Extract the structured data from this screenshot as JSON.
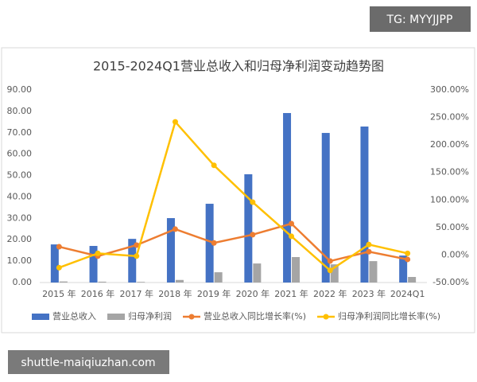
{
  "watermarks": {
    "top": "TG: MYYJJPP",
    "bottom": "shuttle-maiqiuzhan.com"
  },
  "chart_data": {
    "type": "bar",
    "title": "2015-2024Q1营业总收入和归母净利润变动趋势图",
    "categories": [
      "2015 年",
      "2016 年",
      "2017 年",
      "2018 年",
      "2019 年",
      "2020 年",
      "2021 年",
      "2022 年",
      "2023 年",
      "2024Q1"
    ],
    "series": [
      {
        "name": "营业总收入",
        "color": "#4472c4",
        "values": [
          17.8,
          17.1,
          20.4,
          30.1,
          36.8,
          50.6,
          79.2,
          69.9,
          72.9,
          12.6
        ]
      },
      {
        "name": "归母净利润",
        "color": "#a5a5a5",
        "values": [
          0.5,
          0.4,
          0.3,
          1.2,
          4.8,
          8.9,
          11.9,
          8.5,
          10.0,
          2.6
        ]
      },
      {
        "name": "营业总收入同比增长率(%)",
        "color": "#ed7d31",
        "type": "line",
        "axis": "y2",
        "values": [
          15,
          -2,
          18,
          47,
          22,
          37,
          57,
          -11,
          6,
          -8
        ]
      },
      {
        "name": "归母净利润同比增长率(%)",
        "color": "#ffc000",
        "type": "line",
        "axis": "y2",
        "values": [
          -23,
          3,
          -2,
          242,
          163,
          96,
          34,
          -28,
          19,
          3
        ]
      }
    ],
    "ylim": [
      0,
      90
    ],
    "yticks": [
      {
        "value": 0,
        "label": "0.00"
      },
      {
        "value": 10,
        "label": "10.00"
      },
      {
        "value": 20,
        "label": "20.00"
      },
      {
        "value": 30,
        "label": "30.00"
      },
      {
        "value": 40,
        "label": "40.00"
      },
      {
        "value": 50,
        "label": "50.00"
      },
      {
        "value": 60,
        "label": "60.00"
      },
      {
        "value": 70,
        "label": "70.00"
      },
      {
        "value": 80,
        "label": "80.00"
      },
      {
        "value": 90,
        "label": "90.00"
      }
    ],
    "y2lim": [
      -50,
      300
    ],
    "y2ticks": [
      {
        "value": -50,
        "label": "-50.00%"
      },
      {
        "value": 0,
        "label": "0.00%"
      },
      {
        "value": 50,
        "label": "50.00%"
      },
      {
        "value": 100,
        "label": "100.00%"
      },
      {
        "value": 150,
        "label": "150.00%"
      },
      {
        "value": 200,
        "label": "200.00%"
      },
      {
        "value": 250,
        "label": "250.00%"
      },
      {
        "value": 300,
        "label": "300.00%"
      }
    ],
    "grid": false,
    "legend": "bottom"
  }
}
